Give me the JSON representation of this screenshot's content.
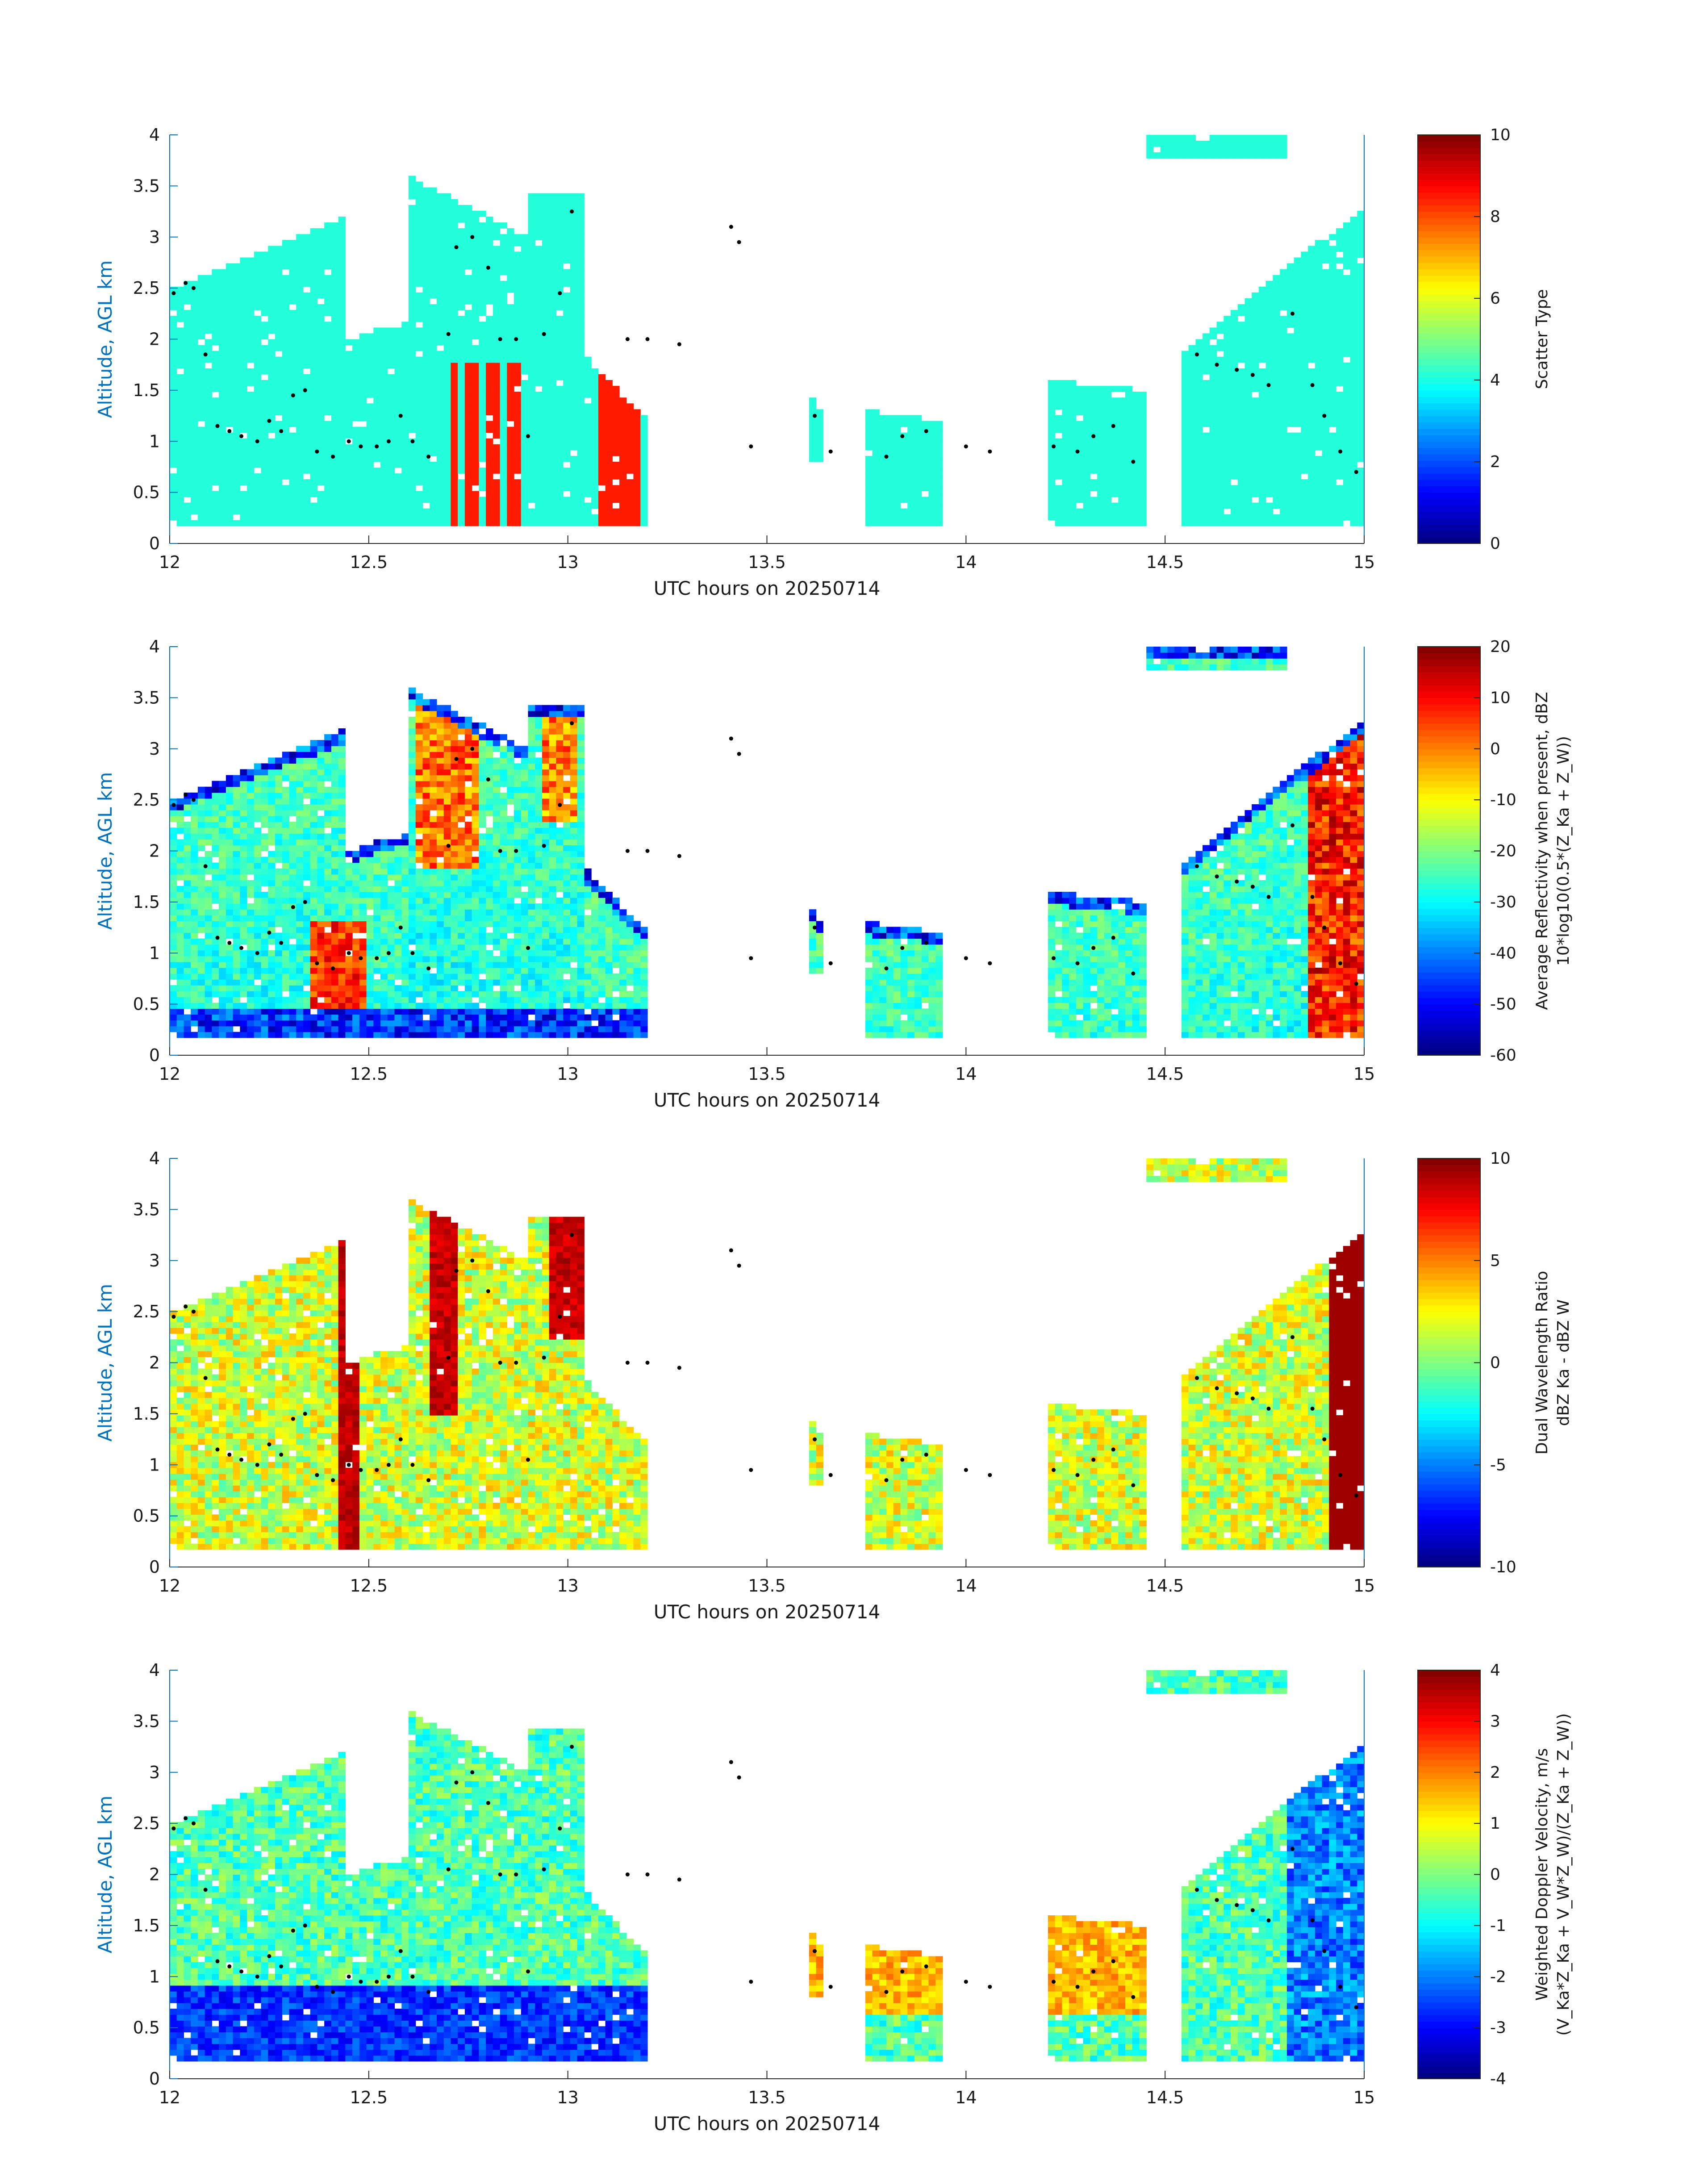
{
  "chart_data": [
    {
      "type": "heatmap",
      "xlabel": "UTC hours on 20250714",
      "ylabel": "Altitude, AGL km",
      "xlim": [
        12,
        15
      ],
      "ylim": [
        0,
        4
      ],
      "xticks": [
        "12",
        "12.5",
        "13",
        "13.5",
        "14",
        "14.5",
        "15"
      ],
      "yticks": [
        "0",
        "0.5",
        "1",
        "1.5",
        "2",
        "2.5",
        "3",
        "3.5",
        "4"
      ],
      "colorbar": {
        "label_lines": [
          "Scatter Type"
        ],
        "range": [
          0,
          10
        ],
        "ticks": [
          "0",
          "2",
          "4",
          "6",
          "8",
          "10"
        ]
      },
      "colormap": "jet",
      "field": "scatter"
    },
    {
      "type": "heatmap",
      "xlabel": "UTC hours on 20250714",
      "ylabel": "Altitude, AGL km",
      "xlim": [
        12,
        15
      ],
      "ylim": [
        0,
        4
      ],
      "xticks": [
        "12",
        "12.5",
        "13",
        "13.5",
        "14",
        "14.5",
        "15"
      ],
      "yticks": [
        "0",
        "0.5",
        "1",
        "1.5",
        "2",
        "2.5",
        "3",
        "3.5",
        "4"
      ],
      "colorbar": {
        "label_lines": [
          "Average Reflectivity when present, dBZ",
          "10*log10(0.5*(Z_Ka + Z_W))"
        ],
        "range": [
          -60,
          20
        ],
        "ticks": [
          "-60",
          "-50",
          "-40",
          "-30",
          "-20",
          "-10",
          "0",
          "10",
          "20"
        ]
      },
      "colormap": "jet",
      "field": "reflectivity"
    },
    {
      "type": "heatmap",
      "xlabel": "UTC hours on 20250714",
      "ylabel": "Altitude, AGL km",
      "xlim": [
        12,
        15
      ],
      "ylim": [
        0,
        4
      ],
      "xticks": [
        "12",
        "12.5",
        "13",
        "13.5",
        "14",
        "14.5",
        "15"
      ],
      "yticks": [
        "0",
        "0.5",
        "1",
        "1.5",
        "2",
        "2.5",
        "3",
        "3.5",
        "4"
      ],
      "colorbar": {
        "label_lines": [
          "Dual Wavelength Ratio",
          "dBZ Ka - dBZ W"
        ],
        "range": [
          -10,
          10
        ],
        "ticks": [
          "-10",
          "-5",
          "0",
          "5",
          "10"
        ]
      },
      "colormap": "jet",
      "field": "dwr"
    },
    {
      "type": "heatmap",
      "xlabel": "UTC hours on 20250714",
      "ylabel": "Altitude, AGL km",
      "xlim": [
        12,
        15
      ],
      "ylim": [
        0,
        4
      ],
      "xticks": [
        "12",
        "12.5",
        "13",
        "13.5",
        "14",
        "14.5",
        "15"
      ],
      "yticks": [
        "0",
        "0.5",
        "1",
        "1.5",
        "2",
        "2.5",
        "3",
        "3.5",
        "4"
      ],
      "colorbar": {
        "label_lines": [
          "Weighted Doppler Velocity, m/s",
          "(V_Ka*Z_Ka + V_W*Z_W)/(Z_Ka + Z_W))"
        ],
        "range": [
          -4,
          4
        ],
        "ticks": [
          "-4",
          "-3",
          "-2",
          "-1",
          "0",
          "1",
          "2",
          "3",
          "4"
        ]
      },
      "colormap": "jet",
      "field": "velocity"
    }
  ],
  "cloud_regions": [
    {
      "x": [
        12.0,
        12.45
      ],
      "base": 0.2,
      "top": [
        2.5,
        3.2
      ]
    },
    {
      "x": [
        12.45,
        12.6
      ],
      "base": 0.2,
      "top": [
        2.0,
        2.2
      ]
    },
    {
      "x": [
        12.6,
        12.9
      ],
      "base": 0.2,
      "top": [
        3.6,
        3.0
      ]
    },
    {
      "x": [
        12.9,
        13.05
      ],
      "base": 0.2,
      "top": [
        3.45,
        3.4
      ]
    },
    {
      "x": [
        13.05,
        13.2
      ],
      "base": 0.2,
      "top": [
        1.8,
        1.2
      ]
    },
    {
      "x": [
        13.6,
        13.65
      ],
      "base": 0.8,
      "top": [
        1.5,
        1.2
      ]
    },
    {
      "x": [
        13.75,
        13.95
      ],
      "base": 0.2,
      "top": [
        1.3,
        1.2
      ]
    },
    {
      "x": [
        14.2,
        14.45
      ],
      "base": 0.2,
      "top": [
        1.6,
        1.5
      ]
    },
    {
      "x": [
        14.45,
        14.8
      ],
      "base": 3.8,
      "top": [
        4.0,
        4.0
      ]
    },
    {
      "x": [
        14.55,
        15.0
      ],
      "base": 0.2,
      "top": [
        1.9,
        3.3
      ]
    }
  ],
  "cloud_top_dots": [
    [
      12.01,
      2.45
    ],
    [
      12.04,
      2.55
    ],
    [
      12.06,
      2.5
    ],
    [
      12.09,
      1.85
    ],
    [
      12.12,
      1.15
    ],
    [
      12.15,
      1.1
    ],
    [
      12.18,
      1.05
    ],
    [
      12.22,
      1.0
    ],
    [
      12.25,
      1.2
    ],
    [
      12.28,
      1.1
    ],
    [
      12.31,
      1.45
    ],
    [
      12.34,
      1.5
    ],
    [
      12.37,
      0.9
    ],
    [
      12.41,
      0.85
    ],
    [
      12.45,
      1.0
    ],
    [
      12.48,
      0.95
    ],
    [
      12.52,
      0.95
    ],
    [
      12.55,
      1.0
    ],
    [
      12.58,
      1.25
    ],
    [
      12.61,
      1.0
    ],
    [
      12.65,
      0.85
    ],
    [
      12.7,
      2.05
    ],
    [
      12.72,
      2.9
    ],
    [
      12.76,
      3.0
    ],
    [
      12.8,
      2.7
    ],
    [
      12.83,
      2.0
    ],
    [
      12.87,
      2.0
    ],
    [
      12.9,
      1.05
    ],
    [
      12.94,
      2.05
    ],
    [
      12.98,
      2.45
    ],
    [
      13.01,
      3.25
    ],
    [
      13.15,
      2.0
    ],
    [
      13.2,
      2.0
    ],
    [
      13.28,
      1.95
    ],
    [
      13.41,
      3.1
    ],
    [
      13.43,
      2.95
    ],
    [
      13.46,
      0.95
    ],
    [
      13.62,
      1.25
    ],
    [
      13.66,
      0.9
    ],
    [
      13.8,
      0.85
    ],
    [
      13.84,
      1.05
    ],
    [
      13.9,
      1.1
    ],
    [
      14.0,
      0.95
    ],
    [
      14.06,
      0.9
    ],
    [
      14.22,
      0.95
    ],
    [
      14.28,
      0.9
    ],
    [
      14.32,
      1.05
    ],
    [
      14.37,
      1.15
    ],
    [
      14.42,
      0.8
    ],
    [
      14.58,
      1.85
    ],
    [
      14.63,
      1.75
    ],
    [
      14.68,
      1.7
    ],
    [
      14.72,
      1.65
    ],
    [
      14.76,
      1.55
    ],
    [
      14.82,
      2.25
    ],
    [
      14.87,
      1.55
    ],
    [
      14.9,
      1.25
    ],
    [
      14.94,
      0.9
    ],
    [
      14.98,
      0.7
    ]
  ]
}
